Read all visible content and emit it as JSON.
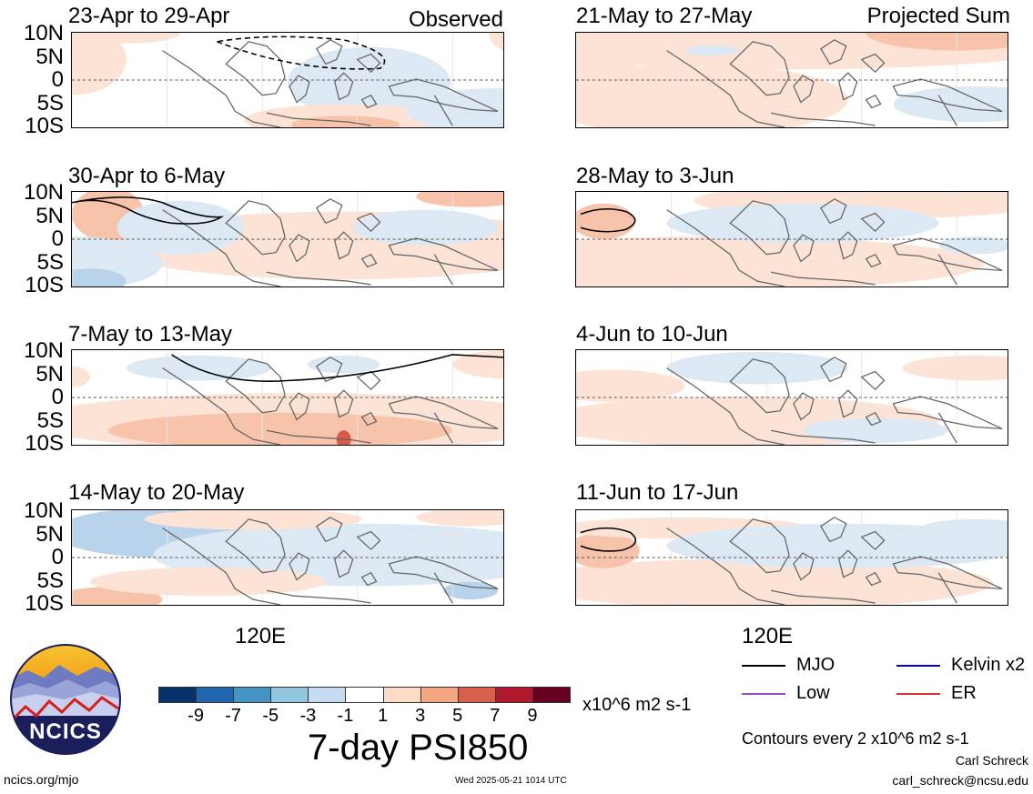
{
  "observed_label": "Observed",
  "projected_label": "Projected Sum",
  "lat_labels": [
    "10N",
    "5N",
    "0",
    "5S",
    "10S"
  ],
  "x_tick_label": "120E",
  "panels_left": [
    {
      "title": "23-Apr to 29-Apr"
    },
    {
      "title": "30-Apr to 6-May"
    },
    {
      "title": "7-May to 13-May"
    },
    {
      "title": "14-May to 20-May"
    }
  ],
  "panels_right": [
    {
      "title": "21-May to 27-May"
    },
    {
      "title": "28-May to 3-Jun"
    },
    {
      "title": "4-Jun to 10-Jun"
    },
    {
      "title": "11-Jun to 17-Jun"
    }
  ],
  "colorbar": {
    "colors": [
      "#08306b",
      "#2166ac",
      "#4393c3",
      "#92c5de",
      "#c6dbef",
      "#ffffff",
      "#fddbc7",
      "#f4a582",
      "#d6604d",
      "#b2182b",
      "#67001f"
    ],
    "labels": [
      "-9",
      "-7",
      "-5",
      "-3",
      "-1",
      "1",
      "3",
      "5",
      "7",
      "9"
    ],
    "units": "x10^6 m2 s-1",
    "title": "7-day PSI850"
  },
  "legend": {
    "items": [
      {
        "label": "MJO",
        "color": "#000000"
      },
      {
        "label": "Kelvin x2",
        "color": "#0000cc"
      },
      {
        "label": "Low",
        "color": "#9b4dca"
      },
      {
        "label": "ER",
        "color": "#e03030"
      }
    ],
    "contours_note": "Contours every 2 x10^6 m2 s-1"
  },
  "logo": {
    "text": "NCICS"
  },
  "footer": {
    "url": "ncics.org/mjo",
    "timestamp": "Wed 2025-05-21 1014 UTC",
    "author": "Carl Schreck",
    "email": "carl_schreck@ncsu.edu"
  }
}
